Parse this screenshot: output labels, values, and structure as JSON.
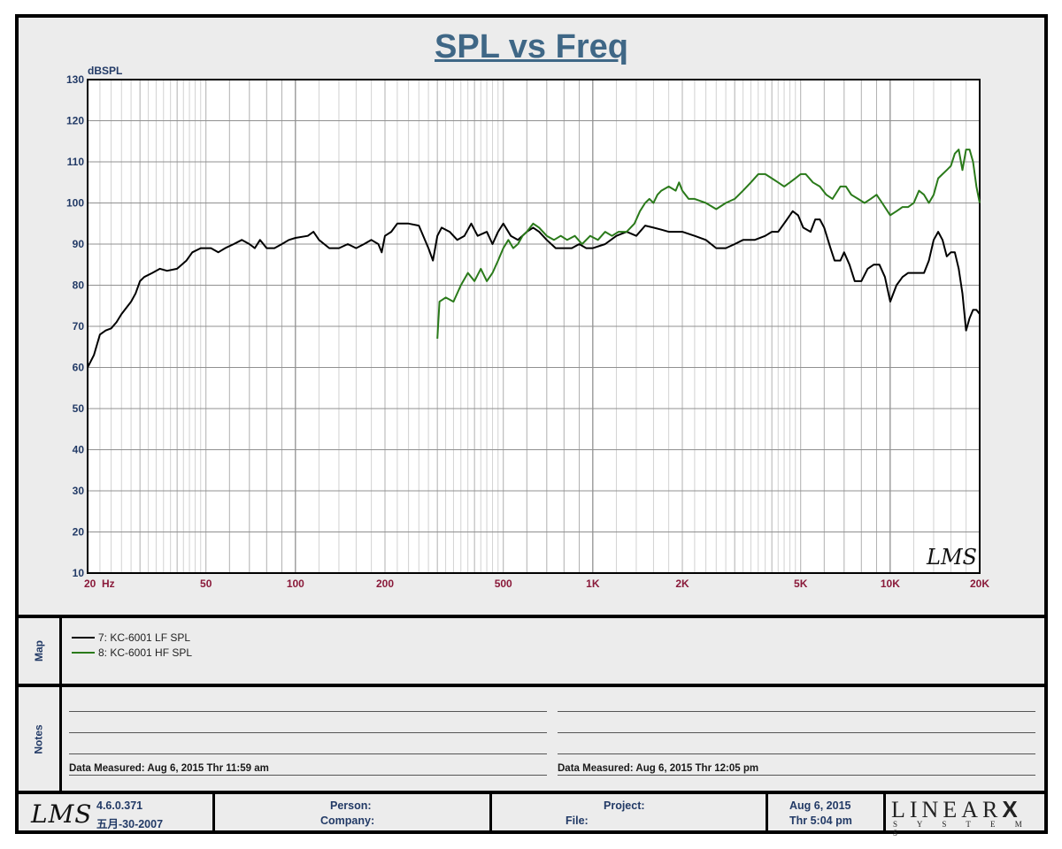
{
  "chart_data": {
    "type": "line",
    "title": "SPL vs Freq",
    "ylabel": "dBSPL",
    "xlabel": "",
    "x_scale": "log",
    "xlim": [
      20,
      20000
    ],
    "ylim": [
      10,
      130
    ],
    "grid": true,
    "y_ticks": [
      10,
      20,
      30,
      40,
      50,
      60,
      70,
      80,
      90,
      100,
      110,
      120,
      130
    ],
    "x_tick_labels": [
      {
        "value": 20,
        "label": "20  Hz"
      },
      {
        "value": 50,
        "label": "50"
      },
      {
        "value": 100,
        "label": "100"
      },
      {
        "value": 200,
        "label": "200"
      },
      {
        "value": 500,
        "label": "500"
      },
      {
        "value": 1000,
        "label": "1K"
      },
      {
        "value": 2000,
        "label": "2K"
      },
      {
        "value": 5000,
        "label": "5K"
      },
      {
        "value": 10000,
        "label": "10K"
      },
      {
        "value": 20000,
        "label": "20K"
      }
    ],
    "series": [
      {
        "name": "7: KC-6001 LF SPL",
        "color": "#000000",
        "points": [
          [
            20,
            60
          ],
          [
            21,
            63
          ],
          [
            22,
            68
          ],
          [
            23,
            69
          ],
          [
            24,
            69.5
          ],
          [
            25,
            71
          ],
          [
            26,
            73
          ],
          [
            28,
            76
          ],
          [
            29,
            78
          ],
          [
            30,
            81
          ],
          [
            31,
            82
          ],
          [
            33,
            83
          ],
          [
            35,
            84
          ],
          [
            37,
            83.5
          ],
          [
            40,
            84
          ],
          [
            43,
            86
          ],
          [
            45,
            88
          ],
          [
            48,
            89
          ],
          [
            52,
            89
          ],
          [
            55,
            88
          ],
          [
            58,
            89
          ],
          [
            62,
            90
          ],
          [
            66,
            91
          ],
          [
            70,
            90
          ],
          [
            73,
            89
          ],
          [
            76,
            91
          ],
          [
            80,
            89
          ],
          [
            85,
            89
          ],
          [
            90,
            90
          ],
          [
            95,
            91
          ],
          [
            100,
            91.5
          ],
          [
            110,
            92
          ],
          [
            115,
            93
          ],
          [
            120,
            91
          ],
          [
            130,
            89
          ],
          [
            140,
            89
          ],
          [
            150,
            90
          ],
          [
            160,
            89
          ],
          [
            170,
            90
          ],
          [
            180,
            91
          ],
          [
            190,
            90
          ],
          [
            195,
            88
          ],
          [
            200,
            92
          ],
          [
            210,
            93
          ],
          [
            220,
            95
          ],
          [
            240,
            95
          ],
          [
            260,
            94.5
          ],
          [
            280,
            89
          ],
          [
            290,
            86
          ],
          [
            300,
            92
          ],
          [
            310,
            94
          ],
          [
            330,
            93
          ],
          [
            350,
            91
          ],
          [
            370,
            92
          ],
          [
            390,
            95
          ],
          [
            410,
            92
          ],
          [
            440,
            93
          ],
          [
            460,
            90
          ],
          [
            480,
            93
          ],
          [
            500,
            95
          ],
          [
            530,
            92
          ],
          [
            560,
            91
          ],
          [
            600,
            93
          ],
          [
            630,
            94
          ],
          [
            660,
            93
          ],
          [
            700,
            91
          ],
          [
            750,
            89
          ],
          [
            800,
            89
          ],
          [
            850,
            89
          ],
          [
            900,
            90
          ],
          [
            950,
            89
          ],
          [
            1000,
            89
          ],
          [
            1100,
            90
          ],
          [
            1200,
            92
          ],
          [
            1300,
            93
          ],
          [
            1400,
            92
          ],
          [
            1500,
            94.5
          ],
          [
            1600,
            94
          ],
          [
            1700,
            93.5
          ],
          [
            1800,
            93
          ],
          [
            2000,
            93
          ],
          [
            2200,
            92
          ],
          [
            2400,
            91
          ],
          [
            2600,
            89
          ],
          [
            2800,
            89
          ],
          [
            3000,
            90
          ],
          [
            3200,
            91
          ],
          [
            3500,
            91
          ],
          [
            3800,
            92
          ],
          [
            4000,
            93
          ],
          [
            4200,
            93
          ],
          [
            4500,
            96
          ],
          [
            4700,
            98
          ],
          [
            4900,
            97
          ],
          [
            5100,
            94
          ],
          [
            5400,
            93
          ],
          [
            5600,
            96
          ],
          [
            5800,
            96
          ],
          [
            6000,
            94
          ],
          [
            6300,
            89
          ],
          [
            6500,
            86
          ],
          [
            6800,
            86
          ],
          [
            7000,
            88
          ],
          [
            7300,
            85
          ],
          [
            7600,
            81
          ],
          [
            8000,
            81
          ],
          [
            8400,
            84
          ],
          [
            8800,
            85
          ],
          [
            9200,
            85
          ],
          [
            9600,
            82
          ],
          [
            10000,
            76
          ],
          [
            10500,
            80
          ],
          [
            11000,
            82
          ],
          [
            11500,
            83
          ],
          [
            12000,
            83
          ],
          [
            12500,
            83
          ],
          [
            13000,
            83
          ],
          [
            13500,
            86
          ],
          [
            14000,
            91
          ],
          [
            14500,
            93
          ],
          [
            15000,
            91
          ],
          [
            15500,
            87
          ],
          [
            16000,
            88
          ],
          [
            16500,
            88
          ],
          [
            17000,
            84
          ],
          [
            17500,
            78
          ],
          [
            18000,
            69
          ],
          [
            18500,
            72
          ],
          [
            19000,
            74
          ],
          [
            19500,
            74
          ],
          [
            20000,
            73
          ]
        ]
      },
      {
        "name": "8: KC-6001 HF SPL",
        "color": "#2a7a1a",
        "points": [
          [
            300,
            67
          ],
          [
            305,
            76
          ],
          [
            320,
            77
          ],
          [
            340,
            76
          ],
          [
            360,
            80
          ],
          [
            380,
            83
          ],
          [
            400,
            81
          ],
          [
            420,
            84
          ],
          [
            440,
            81
          ],
          [
            460,
            83
          ],
          [
            480,
            86
          ],
          [
            500,
            89
          ],
          [
            520,
            91
          ],
          [
            540,
            89
          ],
          [
            560,
            90
          ],
          [
            580,
            92
          ],
          [
            600,
            93
          ],
          [
            630,
            95
          ],
          [
            660,
            94
          ],
          [
            700,
            92
          ],
          [
            740,
            91
          ],
          [
            780,
            92
          ],
          [
            820,
            91
          ],
          [
            870,
            92
          ],
          [
            920,
            90
          ],
          [
            980,
            92
          ],
          [
            1040,
            91
          ],
          [
            1100,
            93
          ],
          [
            1160,
            92
          ],
          [
            1220,
            93
          ],
          [
            1300,
            93
          ],
          [
            1380,
            95
          ],
          [
            1440,
            98
          ],
          [
            1500,
            100
          ],
          [
            1550,
            101
          ],
          [
            1600,
            100
          ],
          [
            1650,
            102
          ],
          [
            1700,
            103
          ],
          [
            1800,
            104
          ],
          [
            1900,
            103
          ],
          [
            1950,
            105
          ],
          [
            2000,
            103
          ],
          [
            2100,
            101
          ],
          [
            2200,
            101
          ],
          [
            2400,
            100
          ],
          [
            2600,
            98.5
          ],
          [
            2800,
            100
          ],
          [
            3000,
            101
          ],
          [
            3200,
            103
          ],
          [
            3400,
            105
          ],
          [
            3600,
            107
          ],
          [
            3800,
            107
          ],
          [
            4000,
            106
          ],
          [
            4200,
            105
          ],
          [
            4400,
            104
          ],
          [
            4600,
            105
          ],
          [
            4800,
            106
          ],
          [
            5000,
            107
          ],
          [
            5200,
            107
          ],
          [
            5500,
            105
          ],
          [
            5800,
            104
          ],
          [
            6100,
            102
          ],
          [
            6400,
            101
          ],
          [
            6800,
            104
          ],
          [
            7100,
            104
          ],
          [
            7400,
            102
          ],
          [
            7800,
            101
          ],
          [
            8200,
            100
          ],
          [
            8600,
            101
          ],
          [
            9000,
            102
          ],
          [
            9400,
            100
          ],
          [
            9800,
            98
          ],
          [
            10000,
            97
          ],
          [
            10500,
            98
          ],
          [
            11000,
            99
          ],
          [
            11500,
            99
          ],
          [
            12000,
            100
          ],
          [
            12500,
            103
          ],
          [
            13000,
            102
          ],
          [
            13500,
            100
          ],
          [
            14000,
            102
          ],
          [
            14500,
            106
          ],
          [
            15000,
            107
          ],
          [
            15500,
            108
          ],
          [
            16000,
            109
          ],
          [
            16500,
            112
          ],
          [
            17000,
            113
          ],
          [
            17500,
            108
          ],
          [
            18000,
            113
          ],
          [
            18500,
            113
          ],
          [
            19000,
            110
          ],
          [
            19500,
            104
          ],
          [
            20000,
            100
          ]
        ]
      }
    ]
  },
  "watermark": "LMS",
  "map": {
    "label": "Map",
    "items": [
      {
        "label": "7: KC-6001 LF SPL",
        "color": "#000000"
      },
      {
        "label": "8: KC-6001 HF SPL",
        "color": "#2a7a1a"
      }
    ]
  },
  "notes": {
    "label": "Notes",
    "left_measured": "Data Measured: Aug  6, 2015  Thr 11:59 am",
    "right_measured": "Data Measured: Aug  6, 2015  Thr 12:05 pm"
  },
  "footer": {
    "logo": "LMS",
    "version": "4.6.0.371",
    "build_date": "五月-30-2007",
    "person_label": "Person:",
    "company_label": "Company:",
    "project_label": "Project:",
    "file_label": "File:",
    "date": "Aug  6, 2015",
    "time": "Thr  5:04 pm",
    "brand": "LINEAR",
    "brand_x": "X",
    "brand_sub": "S Y S T E M S"
  }
}
